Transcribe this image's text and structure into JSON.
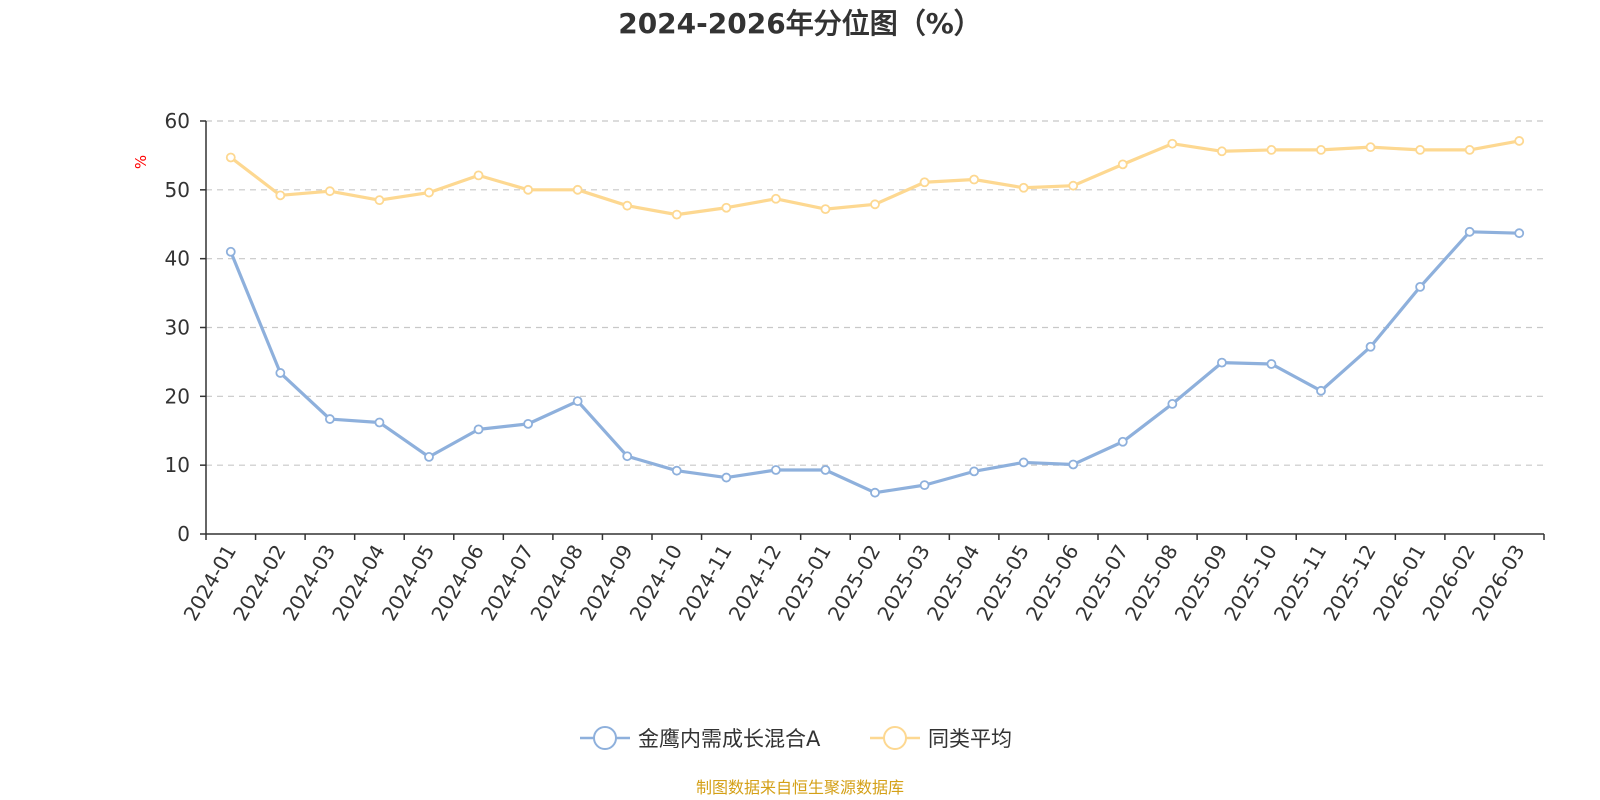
{
  "chart_data": {
    "type": "line",
    "title": "2024-2026年分位图（%）",
    "ylabel": "%",
    "ylim": [
      0,
      60
    ],
    "yticks": [
      0,
      10,
      20,
      30,
      40,
      50,
      60
    ],
    "grid": true,
    "legend_position": "bottom",
    "x": [
      "2024-01",
      "2024-02",
      "2024-03",
      "2024-04",
      "2024-05",
      "2024-06",
      "2024-07",
      "2024-08",
      "2024-09",
      "2024-10",
      "2024-11",
      "2024-12",
      "2025-01",
      "2025-02",
      "2025-03",
      "2025-04",
      "2025-05",
      "2025-06",
      "2025-07",
      "2025-08",
      "2025-09",
      "2025-10",
      "2025-11",
      "2025-12",
      "2026-01",
      "2026-02",
      "2026-03"
    ],
    "series": [
      {
        "name": "金鹰内需成长混合A",
        "color": "#8eb0dc",
        "values": [
          41.0,
          23.4,
          16.7,
          16.2,
          11.2,
          15.2,
          16.0,
          19.3,
          11.3,
          9.2,
          8.2,
          9.3,
          9.3,
          6.0,
          7.1,
          9.1,
          10.4,
          10.1,
          13.4,
          18.9,
          24.9,
          24.7,
          20.8,
          27.2,
          35.9,
          43.9,
          43.7
        ]
      },
      {
        "name": "同类平均",
        "color": "#fdd891",
        "values": [
          54.7,
          49.2,
          49.8,
          48.5,
          49.6,
          52.1,
          50.0,
          50.0,
          47.7,
          46.4,
          47.4,
          48.7,
          47.2,
          47.9,
          51.1,
          51.5,
          50.3,
          50.6,
          53.7,
          56.7,
          55.6,
          55.8,
          55.8,
          56.2,
          55.8,
          55.8,
          57.1
        ]
      }
    ]
  },
  "source_text": "制图数据来自恒生聚源数据库",
  "colors": {
    "axis": "#333333",
    "grid": "#c8c8c8",
    "unit": "#ff0000",
    "source": "#d4a017"
  }
}
